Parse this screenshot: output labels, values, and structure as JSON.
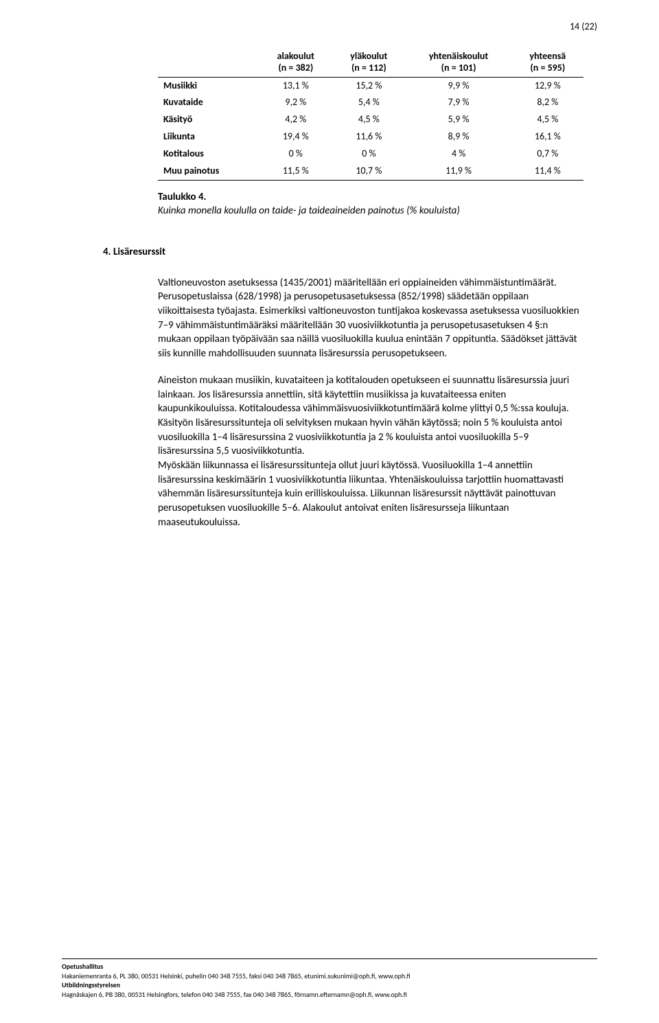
{
  "page_number": "14 (22)",
  "table": {
    "columns": [
      "",
      "alakoulut\n(n = 382)",
      "yläkoulut\n(n = 112)",
      "yhtenäiskoulut\n(n = 101)",
      "yhteensä\n(n = 595)"
    ],
    "rows": [
      [
        "Musiikki",
        "13,1 %",
        "15,2 %",
        "9,9 %",
        "12,9 %"
      ],
      [
        "Kuvataide",
        "9,2 %",
        "5,4 %",
        "7,9 %",
        "8,2 %"
      ],
      [
        "Käsityö",
        "4,2 %",
        "4,5 %",
        "5,9 %",
        "4,5 %"
      ],
      [
        "Liikunta",
        "19,4 %",
        "11,6 %",
        "8,9 %",
        "16,1 %"
      ],
      [
        "Kotitalous",
        "0 %",
        "0 %",
        "4 %",
        "0,7 %"
      ],
      [
        "Muu painotus",
        "11,5 %",
        "10,7 %",
        "11,9 %",
        "11,4 %"
      ]
    ]
  },
  "caption": {
    "bold": "Taulukko 4.",
    "italic": "Kuinka monella koululla on taide- ja taideaineiden painotus (% kouluista)"
  },
  "section_heading": "4. Lisäresurssit",
  "paragraphs": [
    "Valtioneuvoston asetuksessa (1435/2001) määritellään eri oppiaineiden vähimmäistuntimäärät. Perusopetuslaissa (628/1998) ja perusopetusasetuksessa (852/1998) säädetään oppilaan viikoittaisesta työajasta. Esimerkiksi valtioneuvoston tuntijakoa koskevassa asetuksessa vuosiluokkien 7–9 vähimmäistuntimääräksi määritellään 30 vuosiviikkotuntia ja perusopetusasetuksen 4 §:n mukaan oppilaan työpäivään saa näillä vuosiluokilla kuulua enintään 7 oppituntia. Säädökset jättävät siis kunnille mahdollisuuden suunnata lisäresurssia perusopetukseen.",
    "Aineiston mukaan musiikin, kuvataiteen ja kotitalouden opetukseen ei suunnattu lisäresurssia juuri lainkaan. Jos lisäresurssia annettiin, sitä käytettiin musiikissa ja kuvataiteessa eniten kaupunkikouluissa. Kotitaloudessa vähimmäisvuosiviikkotuntimäärä kolme ylittyi 0,5 %:ssa kouluja. Käsityön lisäresurssitunteja oli selvityksen mukaan hyvin vähän käytössä; noin 5 % kouluista antoi vuosiluokilla 1–4 lisäresurssina 2 vuosiviikkotuntia ja 2 % kouluista antoi vuosiluokilla 5–9 lisäresurssina 5,5 vuosiviikkotuntia.",
    "Myöskään liikunnassa ei lisäresurssitunteja ollut juuri käytössä. Vuosiluokilla 1–4 annettiin lisäresurssina keskimäärin 1 vuosiviikkotuntia liikuntaa. Yhtenäiskouluissa tarjottiin huomattavasti vähemmän lisäresurssitunteja kuin erilliskouluissa. Liikunnan lisäresurssit näyttävät painottuvan perusopetuksen vuosiluokille 5–6. Alakoulut antoivat eniten lisäresursseja liikuntaan maaseutukouluissa."
  ],
  "footer": {
    "org1": "Opetushallitus",
    "line1": "Hakaniemenranta 6, PL 380, 00531 Helsinki, puhelin 040 348 7555, faksi 040 348 7865, etunimi.sukunimi@oph.fi, www.oph.fi",
    "org2": "Utbildningsstyrelsen",
    "line2": "Hagnäskajen 6, PB 380, 00531 Helsingfors, telefon 040 348 7555, fax 040 348 7865, förnamn.efternamn@oph.fi, www.oph.fi"
  }
}
